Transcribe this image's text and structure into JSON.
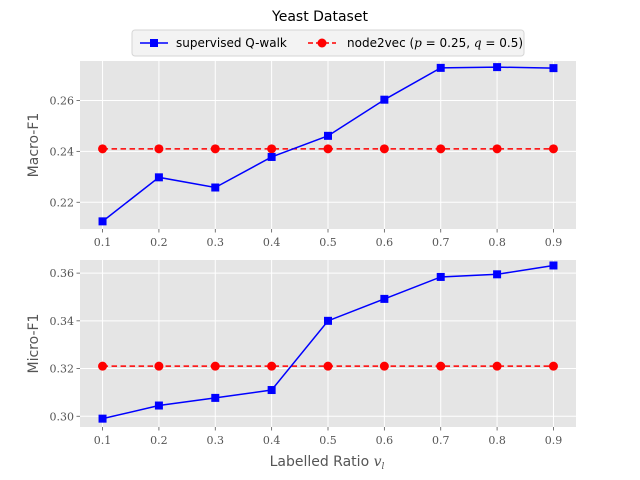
{
  "figure": {
    "title": "Yeast Dataset",
    "xlabel": "Labelled Ratio",
    "xlabel_symbol": "v",
    "xlabel_subscript": "l"
  },
  "legend": {
    "placement": "top-center",
    "entries": [
      {
        "label": "supervised Q-walk",
        "color": "#0000ff",
        "marker": "square",
        "linestyle": "solid"
      },
      {
        "label_prefix": "node2vec (",
        "p_sym": "p",
        "p_val": " = 0.25, ",
        "q_sym": "q",
        "q_val": " = 0.5)",
        "color": "#ff0000",
        "marker": "circle",
        "linestyle": "dashed"
      }
    ]
  },
  "chart_data": [
    {
      "type": "line",
      "ylabel": "Macro-F1",
      "x": [
        0.1,
        0.2,
        0.3,
        0.4,
        0.5,
        0.6,
        0.7,
        0.8,
        0.9
      ],
      "xticks": [
        "0.1",
        "0.2",
        "0.3",
        "0.4",
        "0.5",
        "0.6",
        "0.7",
        "0.8",
        "0.9"
      ],
      "xlim": [
        0.06,
        0.94
      ],
      "ylim": [
        0.2095,
        0.2755
      ],
      "yticks": [
        0.22,
        0.24,
        0.26
      ],
      "ytick_labels": [
        "0.22",
        "0.24",
        "0.26"
      ],
      "grid": true,
      "series": [
        {
          "name": "supervised Q-walk",
          "color": "#0000ff",
          "marker": "square",
          "dash": false,
          "values": [
            0.2125,
            0.2298,
            0.2258,
            0.2378,
            0.2461,
            0.2603,
            0.2728,
            0.2731,
            0.2727
          ]
        },
        {
          "name": "node2vec",
          "color": "#ff0000",
          "marker": "circle",
          "dash": true,
          "values": [
            0.241,
            0.241,
            0.241,
            0.241,
            0.241,
            0.241,
            0.241,
            0.241,
            0.241
          ]
        }
      ]
    },
    {
      "type": "line",
      "ylabel": "Micro-F1",
      "x": [
        0.1,
        0.2,
        0.3,
        0.4,
        0.5,
        0.6,
        0.7,
        0.8,
        0.9
      ],
      "xticks": [
        "0.1",
        "0.2",
        "0.3",
        "0.4",
        "0.5",
        "0.6",
        "0.7",
        "0.8",
        "0.9"
      ],
      "xlim": [
        0.06,
        0.94
      ],
      "ylim": [
        0.2955,
        0.3655
      ],
      "yticks": [
        0.3,
        0.32,
        0.34,
        0.36
      ],
      "ytick_labels": [
        "0.30",
        "0.32",
        "0.34",
        "0.36"
      ],
      "grid": true,
      "series": [
        {
          "name": "supervised Q-walk",
          "color": "#0000ff",
          "marker": "square",
          "dash": false,
          "values": [
            0.299,
            0.3045,
            0.3077,
            0.311,
            0.34,
            0.3492,
            0.3584,
            0.3595,
            0.3632
          ]
        },
        {
          "name": "node2vec",
          "color": "#ff0000",
          "marker": "circle",
          "dash": true,
          "values": [
            0.321,
            0.321,
            0.321,
            0.321,
            0.321,
            0.321,
            0.321,
            0.321,
            0.321
          ]
        }
      ]
    }
  ]
}
